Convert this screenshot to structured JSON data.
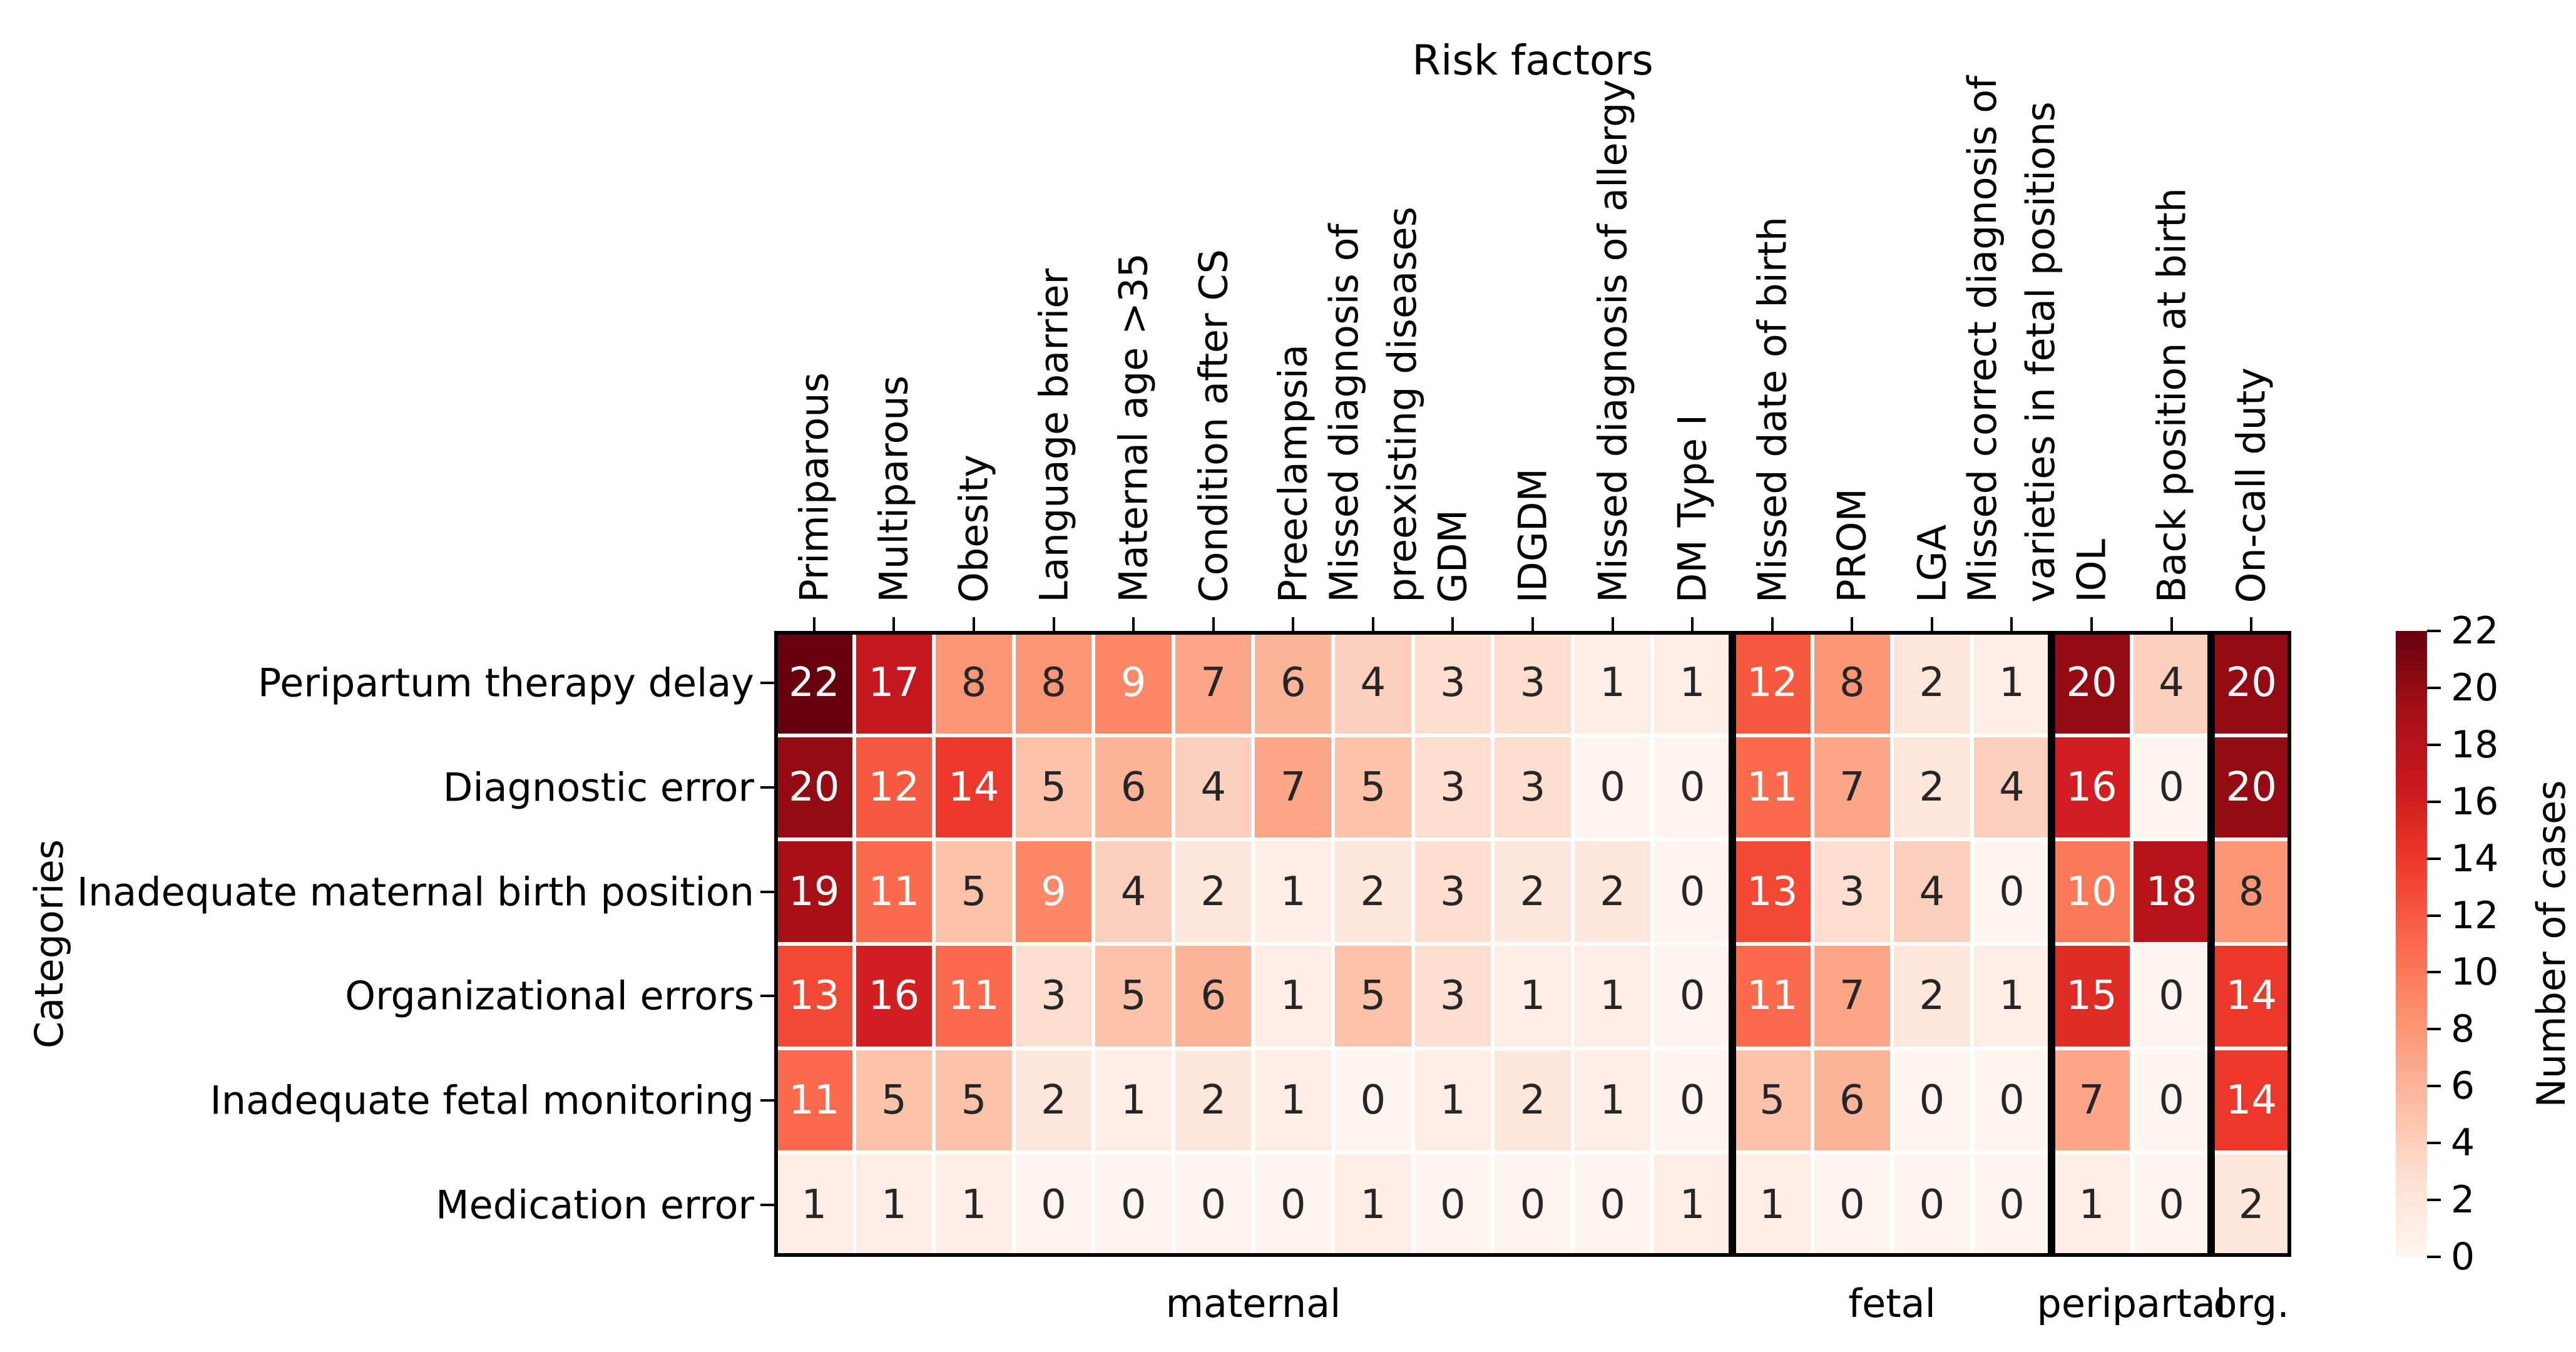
{
  "chart_data": {
    "type": "heatmap",
    "title": "Risk factors",
    "y_axis_title": "Categories",
    "columns": [
      "Primiparous",
      "Multiparous",
      "Obesity",
      "Language barrier",
      "Maternal age >35",
      "Condition after CS",
      "Preeclampsia",
      "Missed diagnosis of\npreexisting diseases",
      "GDM",
      "IDGDM",
      "Missed diagnosis of allergy",
      "DM Type I",
      "Missed date of birth",
      "PROM",
      "LGA",
      "Missed correct diagnosis of\nvarieties in fetal positions",
      "IOL",
      "Back position at birth",
      "On-call duty"
    ],
    "column_groups": [
      {
        "label": "maternal",
        "columns": 12
      },
      {
        "label": "fetal",
        "columns": 4
      },
      {
        "label": "peripartal",
        "columns": 2
      },
      {
        "label": "org.",
        "columns": 1
      }
    ],
    "rows": [
      "Peripartum therapy delay",
      "Diagnostic error",
      "Inadequate maternal birth position",
      "Organizational errors",
      "Inadequate fetal monitoring",
      "Medication error"
    ],
    "values": [
      [
        22,
        17,
        8,
        8,
        9,
        7,
        6,
        4,
        3,
        3,
        1,
        1,
        12,
        8,
        2,
        1,
        20,
        4,
        20
      ],
      [
        20,
        12,
        14,
        5,
        6,
        4,
        7,
        5,
        3,
        3,
        0,
        0,
        11,
        7,
        2,
        4,
        16,
        0,
        20
      ],
      [
        19,
        11,
        5,
        9,
        4,
        2,
        1,
        2,
        3,
        2,
        2,
        0,
        13,
        3,
        4,
        0,
        10,
        18,
        8
      ],
      [
        13,
        16,
        11,
        3,
        5,
        6,
        1,
        5,
        3,
        1,
        1,
        0,
        11,
        7,
        2,
        1,
        15,
        0,
        14
      ],
      [
        11,
        5,
        5,
        2,
        1,
        2,
        1,
        0,
        1,
        2,
        1,
        0,
        5,
        6,
        0,
        0,
        7,
        0,
        14
      ],
      [
        1,
        1,
        1,
        0,
        0,
        0,
        0,
        1,
        0,
        0,
        0,
        1,
        1,
        0,
        0,
        0,
        1,
        0,
        2
      ]
    ],
    "colorbar": {
      "label": "Number of cases",
      "vmin": 0,
      "vmax": 22,
      "ticks": [
        0,
        2,
        4,
        6,
        8,
        10,
        12,
        14,
        16,
        18,
        20,
        22
      ]
    },
    "colormap": {
      "name": "Reds",
      "stops": [
        "#FFF5F0",
        "#FEE0D2",
        "#FCBBA1",
        "#FC9272",
        "#FB6A4A",
        "#EF3B2C",
        "#CB181D",
        "#A50F15",
        "#67000D"
      ]
    },
    "annotation": {
      "dark_text": "#262626",
      "light_text": "#ffffff",
      "light_text_min_value": 9
    },
    "layout": {
      "grid": "off",
      "legend_position": "right-colorbar",
      "x_tick_label_rotation": 90
    }
  }
}
